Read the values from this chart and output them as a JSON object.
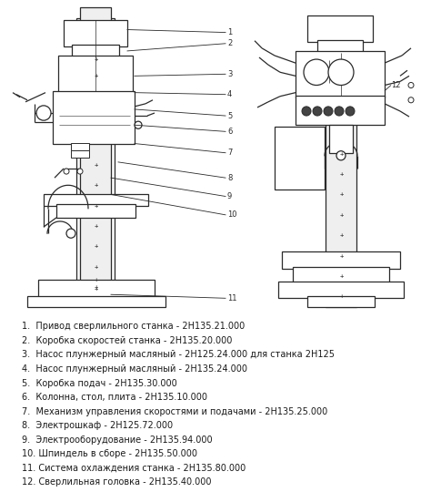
{
  "bg_color": "#ffffff",
  "legend_items": [
    "1.  Привод сверлильного станка - 2Н135.21.000",
    "2.  Коробка скоростей станка - 2Н135.20.000",
    "3.  Насос плунжерный масляный - 2Н125.24.000 для станка 2Н125",
    "4.  Насос плунжерный масляный - 2Н135.24.000",
    "5.  Коробка подач - 2Н135.30.000",
    "6.  Колонна, стол, плита - 2Н135.10.000",
    "7.  Механизм управления скоростями и подачами - 2Н135.25.000",
    "8.  Электрошкаф - 2Н125.72.000",
    "9.  Электрооборудование - 2Н135.94.000",
    "10. Шпиндель в сборе - 2Н135.50.000",
    "11. Система охлаждения станка - 2Н135.80.000",
    "12. Сверлильная головка - 2Н135.40.000"
  ],
  "line_color": "#2a2a2a",
  "text_color": "#1a1a1a",
  "font_size": 7.0,
  "fig_width": 4.74,
  "fig_height": 5.4,
  "dpi": 100
}
